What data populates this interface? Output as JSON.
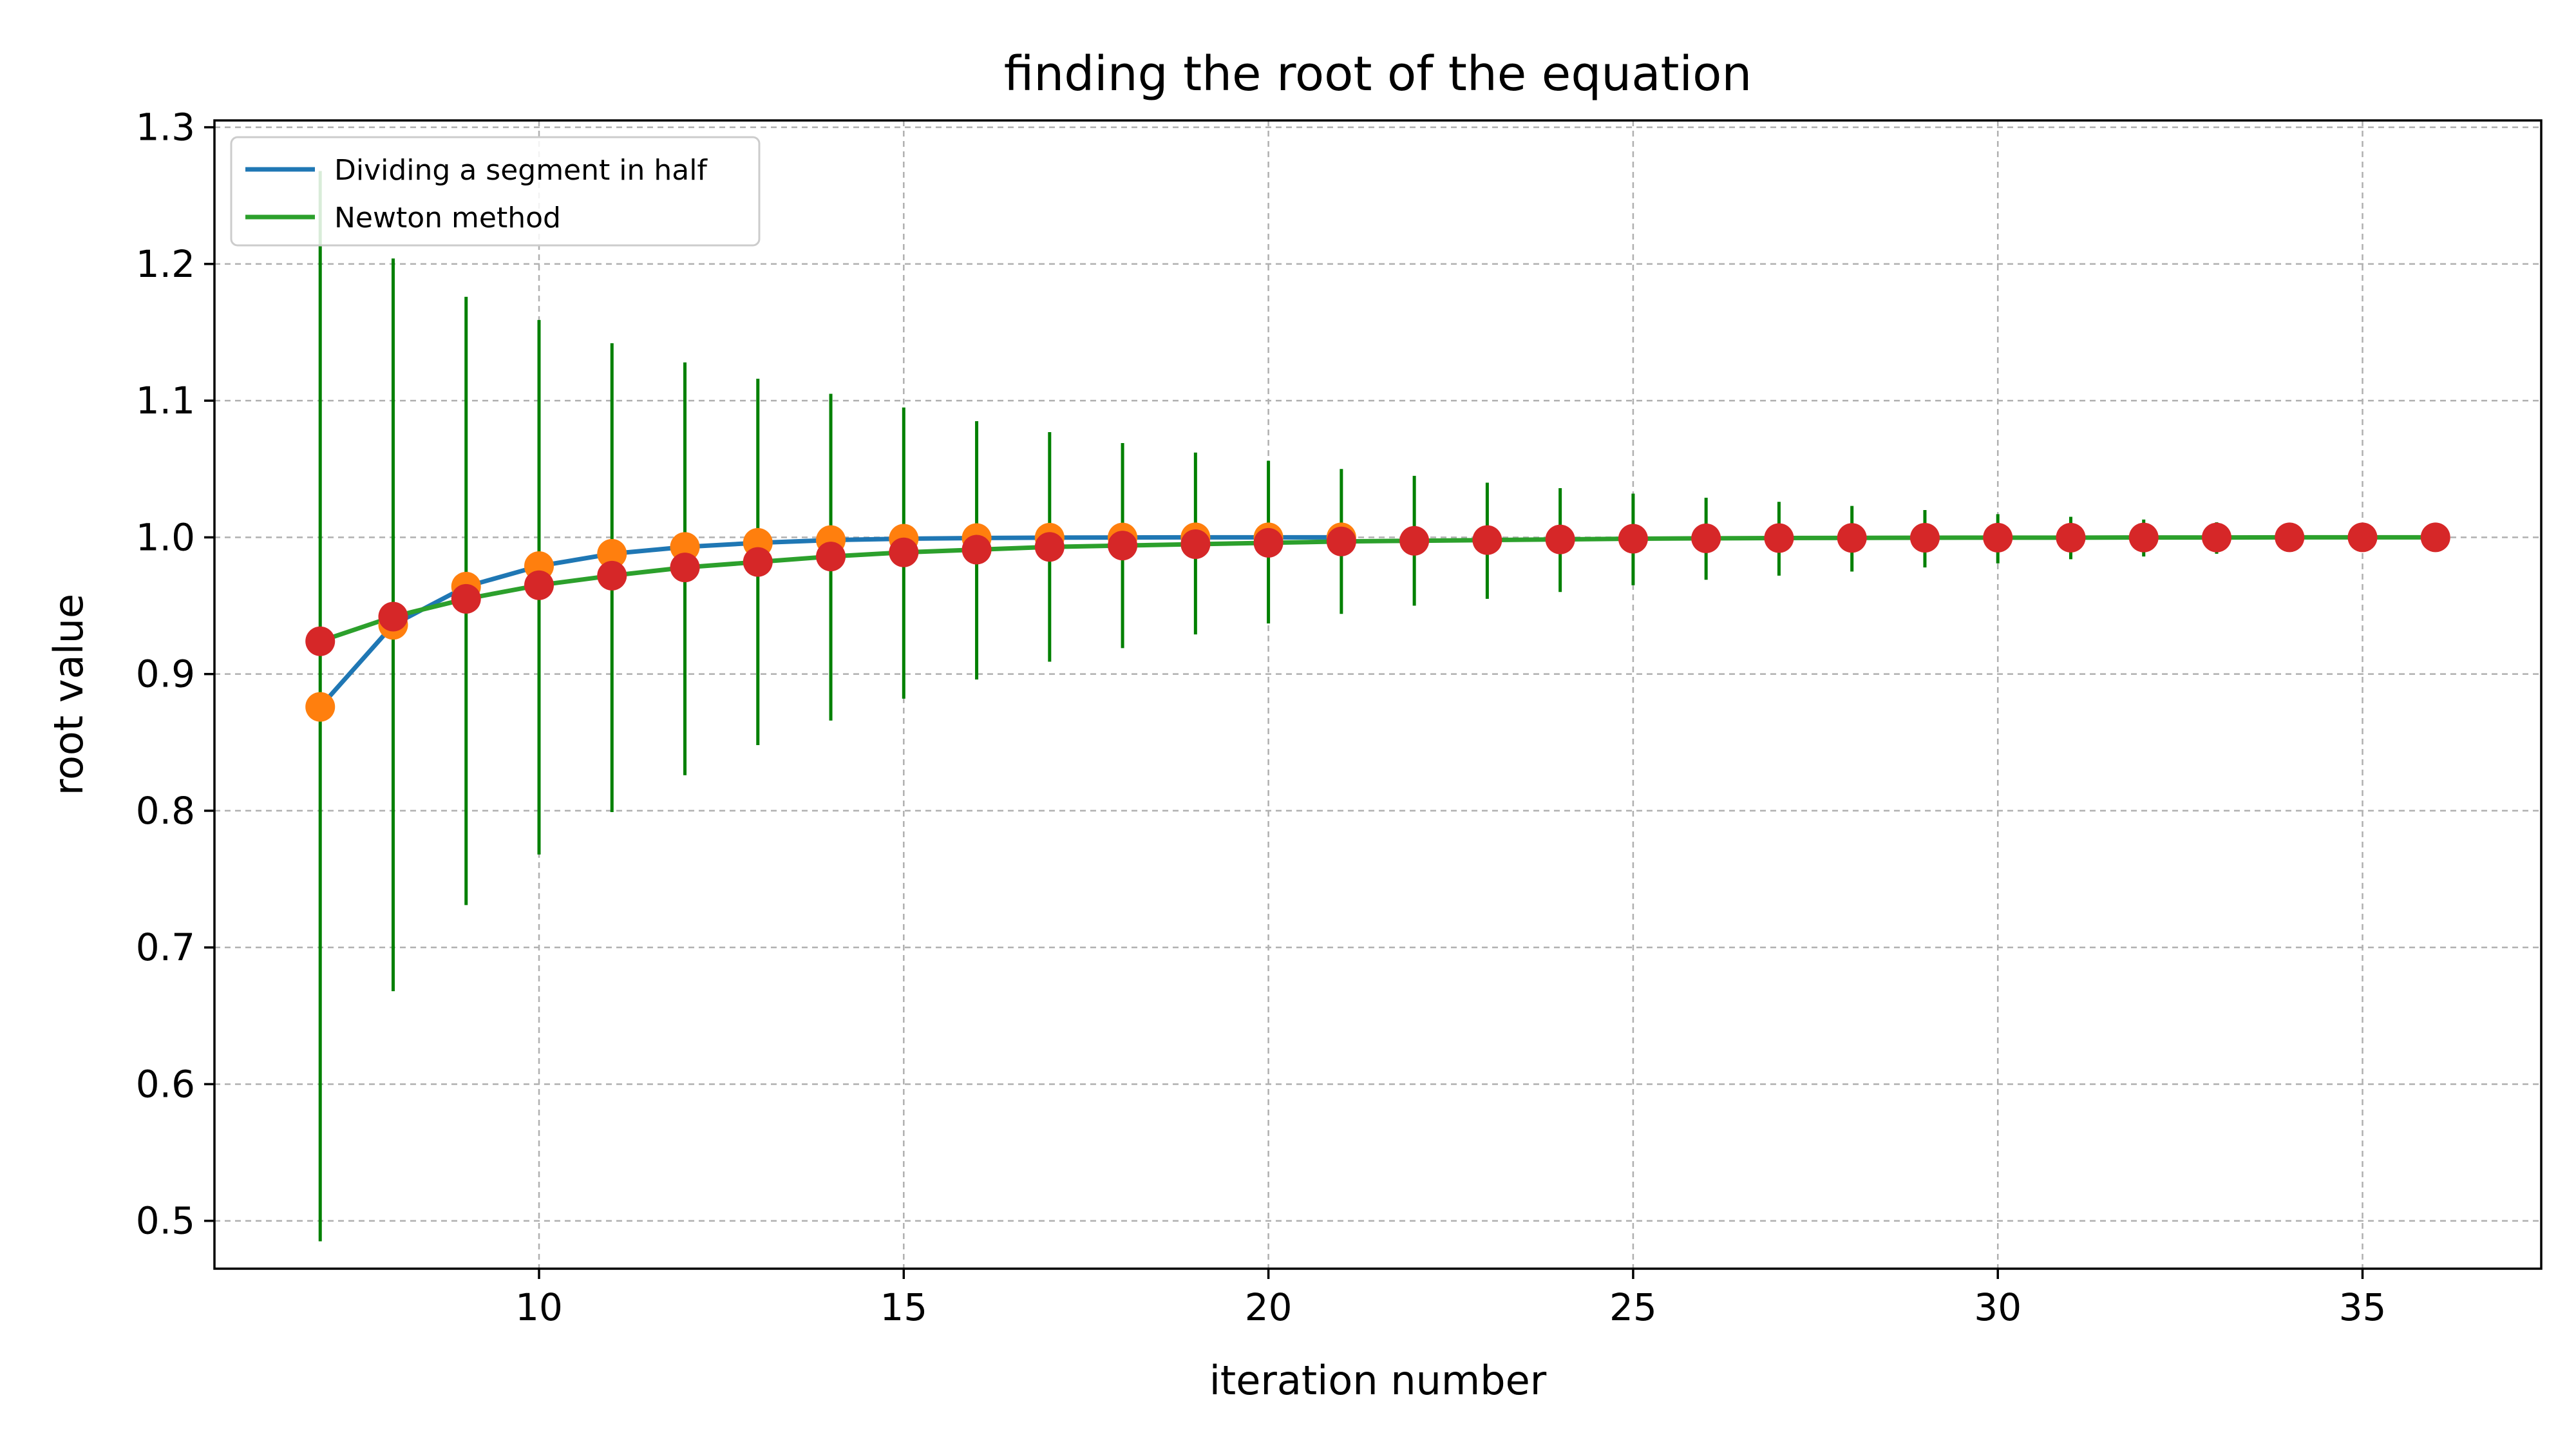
{
  "chart_data": {
    "type": "line",
    "title": "finding the root of the equation",
    "xlabel": "iteration number",
    "ylabel": "root value",
    "xlim": [
      5.55,
      37.45
    ],
    "ylim": [
      0.465,
      1.305
    ],
    "xticks": [
      10,
      15,
      20,
      25,
      30,
      35
    ],
    "yticks": [
      0.5,
      0.6,
      0.7,
      0.8,
      0.9,
      1.0,
      1.1,
      1.2,
      1.3
    ],
    "xtick_labels": [
      "10",
      "15",
      "20",
      "25",
      "30",
      "35"
    ],
    "ytick_labels": [
      "0.5",
      "0.6",
      "0.7",
      "0.8",
      "0.9",
      "1.0",
      "1.1",
      "1.2",
      "1.3"
    ],
    "grid": true,
    "legend_position": "top-left",
    "series": [
      {
        "name": "Dividing a segment in half",
        "color": "#1f77b4",
        "marker_color": "#ff7f0e",
        "x": [
          7,
          8,
          9,
          10,
          11,
          12,
          13,
          14,
          15,
          16,
          17,
          18,
          19,
          20,
          21
        ],
        "y": [
          0.876,
          0.936,
          0.964,
          0.979,
          0.988,
          0.993,
          0.996,
          0.998,
          0.999,
          0.9995,
          0.9998,
          0.9999,
          1.0,
          1.0,
          1.0
        ]
      },
      {
        "name": "Newton method",
        "color": "#2ca02c",
        "marker_color": "#d62728",
        "x": [
          7,
          8,
          9,
          10,
          11,
          12,
          13,
          14,
          15,
          16,
          17,
          18,
          19,
          20,
          21,
          22,
          23,
          24,
          25,
          26,
          27,
          28,
          29,
          30,
          31,
          32,
          33,
          34,
          35,
          36
        ],
        "y": [
          0.924,
          0.942,
          0.955,
          0.965,
          0.972,
          0.978,
          0.982,
          0.986,
          0.989,
          0.991,
          0.993,
          0.994,
          0.995,
          0.996,
          0.997,
          0.9975,
          0.998,
          0.9985,
          0.999,
          0.9993,
          0.9995,
          0.9996,
          0.9997,
          0.9998,
          0.9998,
          0.9999,
          0.9999,
          1.0,
          1.0,
          1.0
        ],
        "error": {
          "color": "#008000",
          "low": [
            0.485,
            0.668,
            0.731,
            0.768,
            0.799,
            0.826,
            0.848,
            0.866,
            0.882,
            0.896,
            0.909,
            0.919,
            0.929,
            0.937,
            0.944,
            0.95,
            0.955,
            0.96,
            0.965,
            0.969,
            0.972,
            0.975,
            0.978,
            0.981,
            0.984,
            0.986,
            0.988,
            0.99,
            0.992,
            0.994
          ],
          "high": [
            1.268,
            1.204,
            1.176,
            1.159,
            1.142,
            1.128,
            1.116,
            1.105,
            1.095,
            1.085,
            1.077,
            1.069,
            1.062,
            1.056,
            1.05,
            1.045,
            1.04,
            1.036,
            1.032,
            1.029,
            1.026,
            1.023,
            1.02,
            1.017,
            1.015,
            1.013,
            1.011,
            1.009,
            1.007,
            1.006
          ]
        }
      }
    ]
  }
}
